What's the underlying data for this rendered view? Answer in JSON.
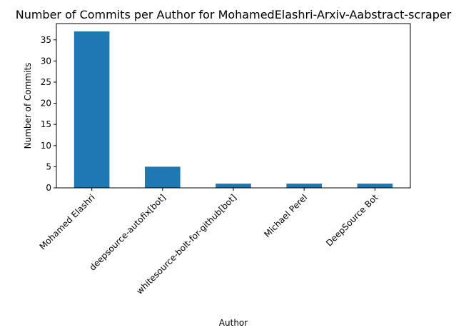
{
  "chart_data": {
    "type": "bar",
    "title": "Number of Commits per Author for MohamedElashri-Arxiv-Aabstract-scraper",
    "xlabel": "Author",
    "ylabel": "Number of Commits",
    "categories": [
      "Mohamed Elashri",
      "deepsource-autofix[bot]",
      "whitesource-bolt-for-github[bot]",
      "Michael Perel",
      "DeepSource Bot"
    ],
    "values": [
      37,
      5,
      1,
      1,
      1
    ],
    "ylim": [
      0,
      38.85
    ],
    "yticks": [
      0,
      5,
      10,
      15,
      20,
      25,
      30,
      35
    ],
    "bar_color": "#1f77b4",
    "grid": false,
    "legend": "none"
  }
}
